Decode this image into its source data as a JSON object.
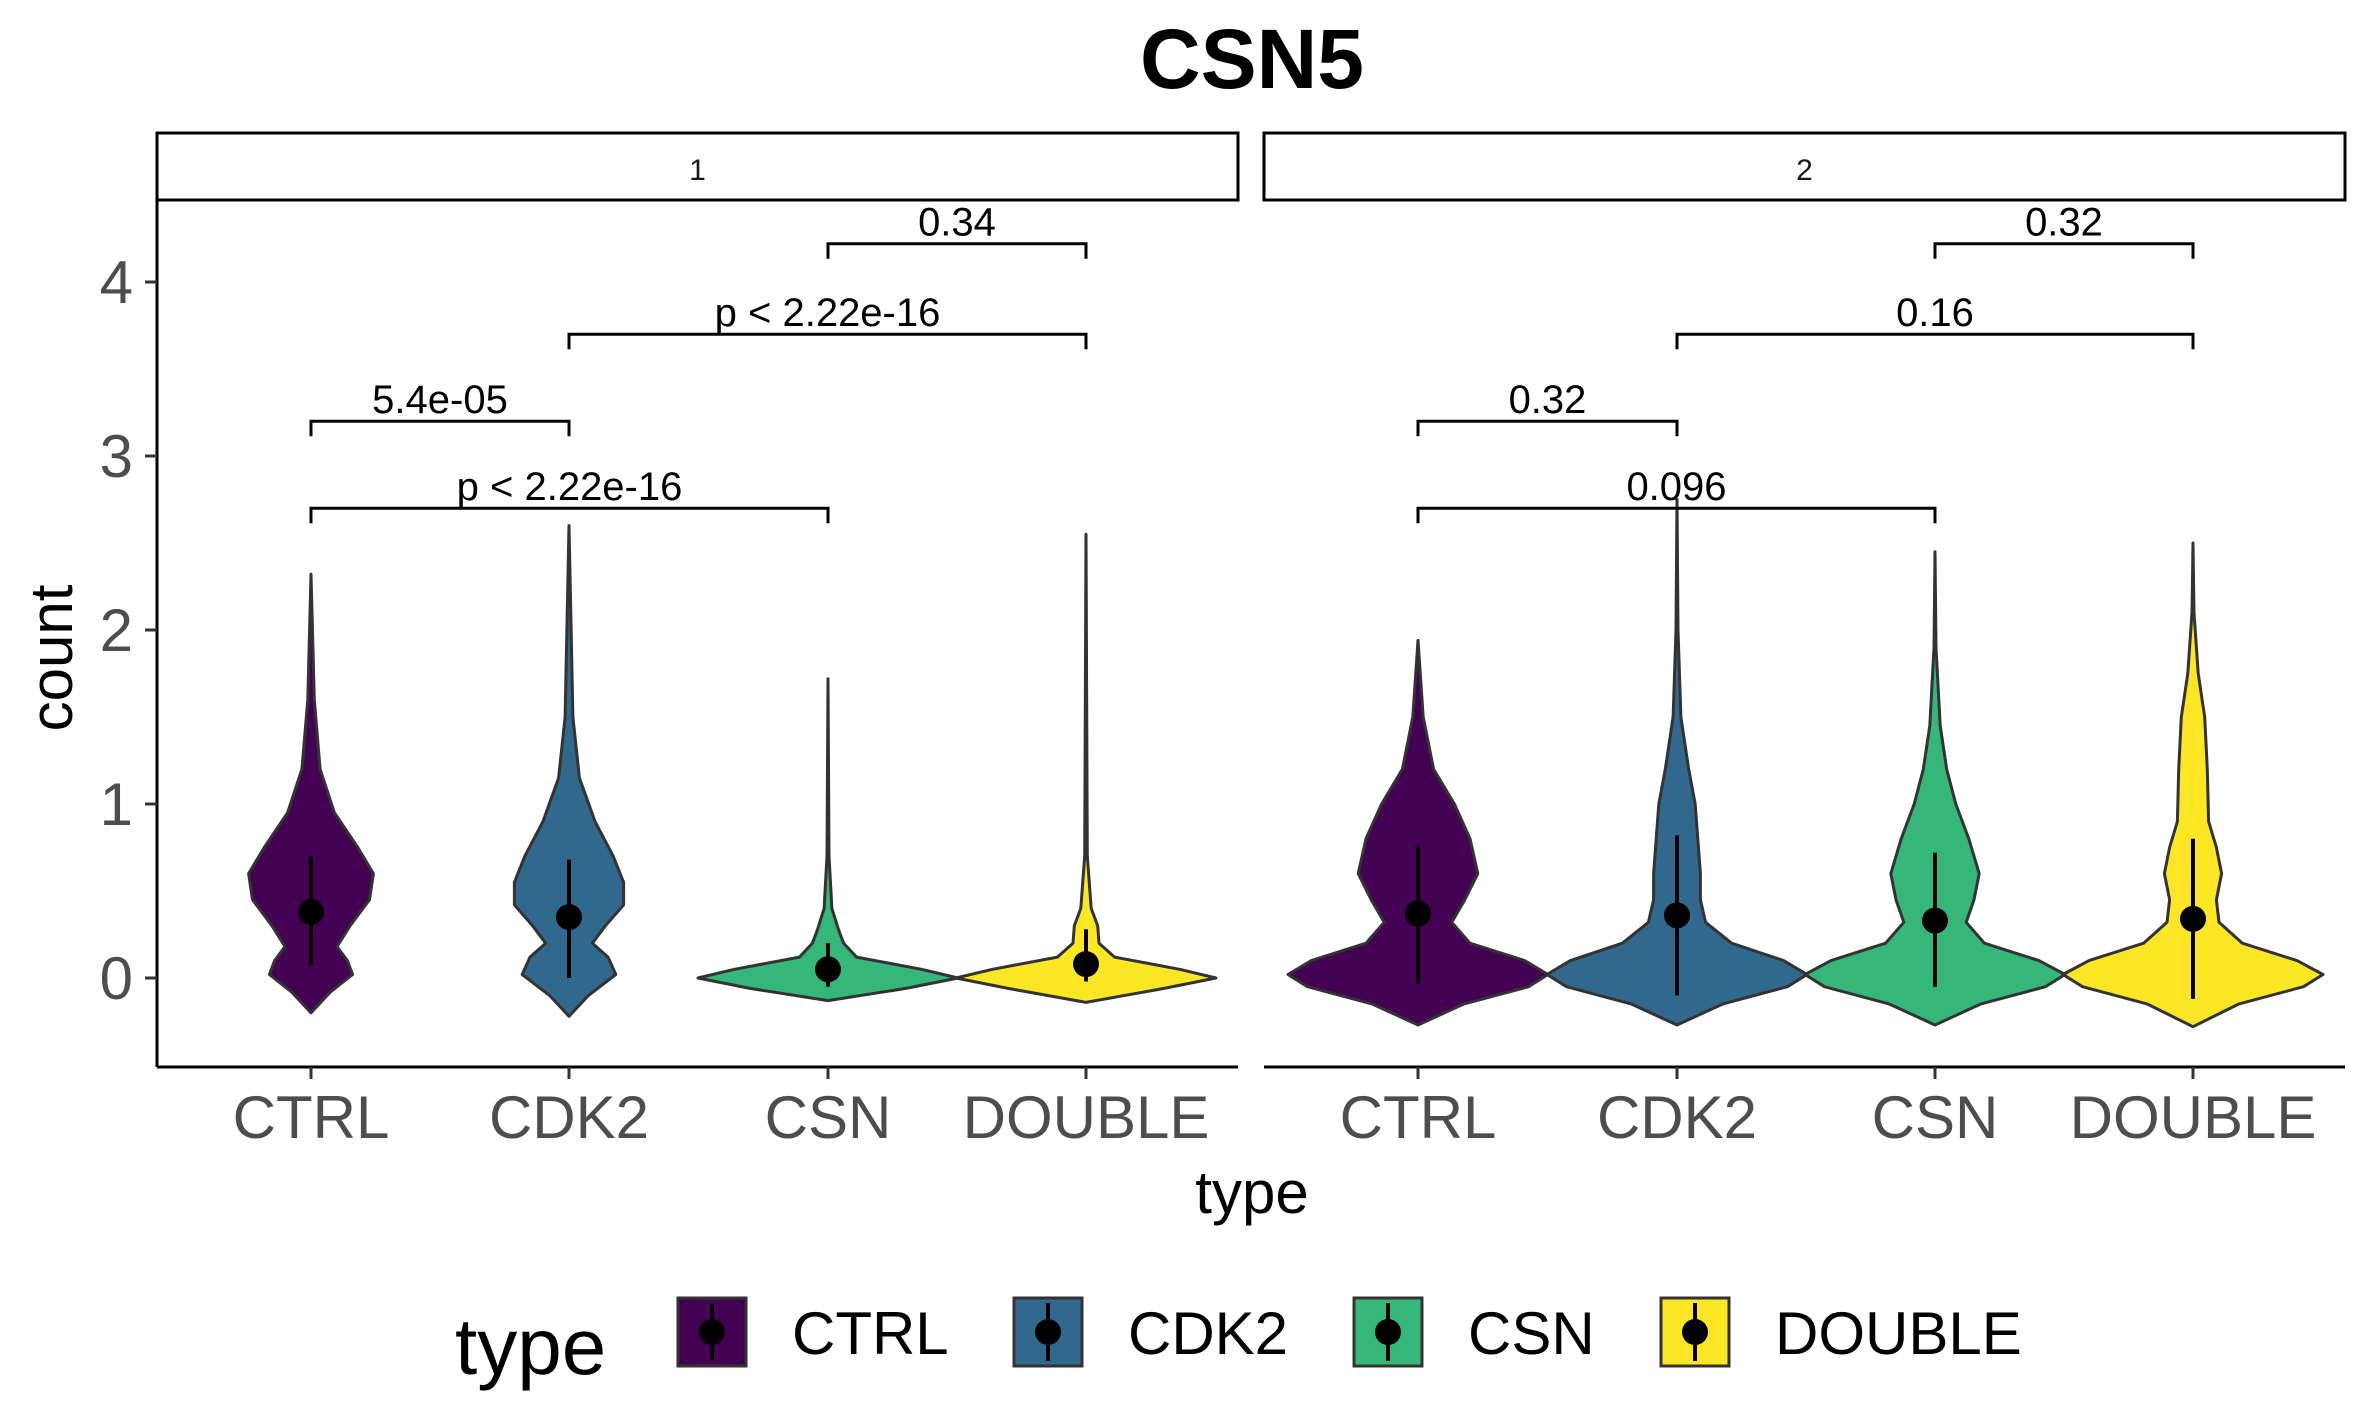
{
  "colors": {
    "CTRL": "#440154",
    "CDK2": "#31688E",
    "CSN": "#35B779",
    "DOUBLE": "#FDE725"
  },
  "chart_data": {
    "type": "violin",
    "title": "CSN5",
    "xlabel": "type",
    "ylabel": "count",
    "ylim": [
      -0.52,
      4.45
    ],
    "yticks": [
      0,
      1,
      2,
      3,
      4
    ],
    "categories": [
      "CTRL",
      "CDK2",
      "CSN",
      "DOUBLE"
    ],
    "legend": {
      "title": "type",
      "position": "bottom",
      "entries": [
        "CTRL",
        "CDK2",
        "CSN",
        "DOUBLE"
      ]
    },
    "facets": [
      {
        "label": "1",
        "violins": [
          {
            "type": "CTRL",
            "mean": 0.38,
            "sd_low": 0.07,
            "sd_high": 0.7,
            "min": -0.2,
            "max": 2.32,
            "profile": [
              [
                -0.2,
                0.0
              ],
              [
                -0.08,
                0.15
              ],
              [
                0.02,
                0.32
              ],
              [
                0.1,
                0.28
              ],
              [
                0.18,
                0.2
              ],
              [
                0.3,
                0.3
              ],
              [
                0.45,
                0.45
              ],
              [
                0.6,
                0.48
              ],
              [
                0.75,
                0.36
              ],
              [
                0.95,
                0.18
              ],
              [
                1.2,
                0.07
              ],
              [
                1.6,
                0.025
              ],
              [
                2.32,
                0.0
              ]
            ]
          },
          {
            "type": "CDK2",
            "mean": 0.35,
            "sd_low": 0.0,
            "sd_high": 0.68,
            "min": -0.22,
            "max": 2.6,
            "profile": [
              [
                -0.22,
                0.0
              ],
              [
                -0.1,
                0.15
              ],
              [
                0.02,
                0.36
              ],
              [
                0.12,
                0.3
              ],
              [
                0.2,
                0.18
              ],
              [
                0.3,
                0.28
              ],
              [
                0.42,
                0.42
              ],
              [
                0.55,
                0.42
              ],
              [
                0.7,
                0.34
              ],
              [
                0.9,
                0.2
              ],
              [
                1.15,
                0.08
              ],
              [
                1.5,
                0.03
              ],
              [
                2.6,
                0.0
              ]
            ]
          },
          {
            "type": "CSN",
            "mean": 0.05,
            "sd_low": -0.05,
            "sd_high": 0.2,
            "min": -0.13,
            "max": 1.72,
            "profile": [
              [
                -0.13,
                0.0
              ],
              [
                -0.06,
                0.6
              ],
              [
                0.0,
                1.0
              ],
              [
                0.05,
                0.72
              ],
              [
                0.12,
                0.22
              ],
              [
                0.2,
                0.12
              ],
              [
                0.28,
                0.08
              ],
              [
                0.4,
                0.03
              ],
              [
                0.7,
                0.008
              ],
              [
                1.72,
                0.0
              ]
            ]
          },
          {
            "type": "DOUBLE",
            "mean": 0.08,
            "sd_low": -0.02,
            "sd_high": 0.28,
            "min": -0.14,
            "max": 2.55,
            "profile": [
              [
                -0.14,
                0.0
              ],
              [
                -0.06,
                0.6
              ],
              [
                0.0,
                1.0
              ],
              [
                0.05,
                0.72
              ],
              [
                0.12,
                0.22
              ],
              [
                0.2,
                0.1
              ],
              [
                0.3,
                0.09
              ],
              [
                0.4,
                0.04
              ],
              [
                0.7,
                0.01
              ],
              [
                2.55,
                0.0
              ]
            ]
          }
        ],
        "comparisons": [
          {
            "group1": "CTRL",
            "group2": "CDK2",
            "label": "5.4e-05",
            "y": 3.2
          },
          {
            "group1": "CTRL",
            "group2": "CSN",
            "label": "p < 2.22e-16",
            "y": 2.7
          },
          {
            "group1": "CDK2",
            "group2": "DOUBLE",
            "label": "p < 2.22e-16",
            "y": 3.7
          },
          {
            "group1": "CSN",
            "group2": "DOUBLE",
            "label": "0.34",
            "y": 4.22
          }
        ]
      },
      {
        "label": "2",
        "violins": [
          {
            "type": "CTRL",
            "mean": 0.37,
            "sd_low": -0.03,
            "sd_high": 0.76,
            "min": -0.27,
            "max": 1.94,
            "profile": [
              [
                -0.27,
                0.0
              ],
              [
                -0.15,
                0.35
              ],
              [
                -0.05,
                0.85
              ],
              [
                0.02,
                1.0
              ],
              [
                0.1,
                0.82
              ],
              [
                0.2,
                0.4
              ],
              [
                0.32,
                0.26
              ],
              [
                0.45,
                0.36
              ],
              [
                0.6,
                0.46
              ],
              [
                0.8,
                0.4
              ],
              [
                1.0,
                0.28
              ],
              [
                1.2,
                0.12
              ],
              [
                1.5,
                0.04
              ],
              [
                1.94,
                0.0
              ]
            ]
          },
          {
            "type": "CDK2",
            "mean": 0.36,
            "sd_low": -0.1,
            "sd_high": 0.82,
            "min": -0.27,
            "max": 2.75,
            "profile": [
              [
                -0.27,
                0.0
              ],
              [
                -0.15,
                0.35
              ],
              [
                -0.05,
                0.85
              ],
              [
                0.02,
                1.0
              ],
              [
                0.1,
                0.82
              ],
              [
                0.2,
                0.42
              ],
              [
                0.32,
                0.22
              ],
              [
                0.45,
                0.18
              ],
              [
                0.6,
                0.18
              ],
              [
                0.8,
                0.16
              ],
              [
                1.0,
                0.14
              ],
              [
                1.2,
                0.09
              ],
              [
                1.5,
                0.03
              ],
              [
                2.0,
                0.008
              ],
              [
                2.75,
                0.0
              ]
            ]
          },
          {
            "type": "CSN",
            "mean": 0.33,
            "sd_low": -0.05,
            "sd_high": 0.72,
            "min": -0.27,
            "max": 2.45,
            "profile": [
              [
                -0.27,
                0.0
              ],
              [
                -0.15,
                0.35
              ],
              [
                -0.05,
                0.85
              ],
              [
                0.02,
                1.0
              ],
              [
                0.1,
                0.8
              ],
              [
                0.2,
                0.38
              ],
              [
                0.32,
                0.24
              ],
              [
                0.45,
                0.3
              ],
              [
                0.6,
                0.34
              ],
              [
                0.8,
                0.26
              ],
              [
                1.0,
                0.16
              ],
              [
                1.2,
                0.09
              ],
              [
                1.45,
                0.04
              ],
              [
                1.9,
                0.008
              ],
              [
                2.45,
                0.0
              ]
            ]
          },
          {
            "type": "DOUBLE",
            "mean": 0.34,
            "sd_low": -0.12,
            "sd_high": 0.8,
            "min": -0.28,
            "max": 2.5,
            "profile": [
              [
                -0.28,
                0.0
              ],
              [
                -0.15,
                0.35
              ],
              [
                -0.05,
                0.85
              ],
              [
                0.02,
                1.0
              ],
              [
                0.1,
                0.8
              ],
              [
                0.2,
                0.38
              ],
              [
                0.32,
                0.2
              ],
              [
                0.45,
                0.18
              ],
              [
                0.6,
                0.22
              ],
              [
                0.75,
                0.18
              ],
              [
                0.9,
                0.12
              ],
              [
                1.2,
                0.11
              ],
              [
                1.5,
                0.09
              ],
              [
                1.75,
                0.04
              ],
              [
                2.1,
                0.008
              ],
              [
                2.5,
                0.0
              ]
            ]
          }
        ],
        "comparisons": [
          {
            "group1": "CTRL",
            "group2": "CDK2",
            "label": "0.32",
            "y": 3.2
          },
          {
            "group1": "CTRL",
            "group2": "CSN",
            "label": "0.096",
            "y": 2.7
          },
          {
            "group1": "CDK2",
            "group2": "DOUBLE",
            "label": "0.16",
            "y": 3.7
          },
          {
            "group1": "CSN",
            "group2": "DOUBLE",
            "label": "0.32",
            "y": 4.22
          }
        ]
      }
    ]
  }
}
